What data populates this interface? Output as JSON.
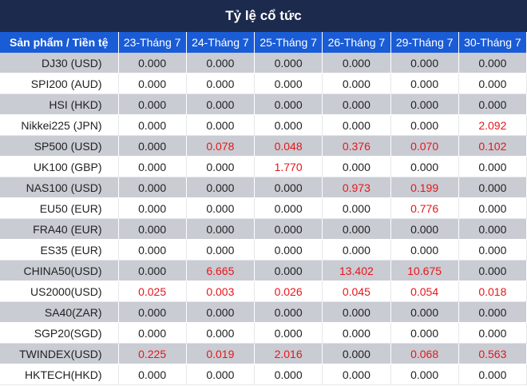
{
  "title": "Tỷ lệ cổ tức",
  "header": [
    "Sản phẩm / Tiền tệ",
    "23-Tháng 7",
    "24-Tháng 7",
    "25-Tháng 7",
    "26-Tháng 7",
    "29-Tháng 7",
    "30-Tháng 7"
  ],
  "colors": {
    "title_bg": "#1c2a4d",
    "header_bg": "#1a5cd6",
    "odd_row_bg": "#c9ccd3",
    "positive_text": "#e8151b"
  },
  "rows": [
    {
      "product": "DJ30 (USD)",
      "values": [
        "0.000",
        "0.000",
        "0.000",
        "0.000",
        "0.000",
        "0.000"
      ]
    },
    {
      "product": "SPI200 (AUD)",
      "values": [
        "0.000",
        "0.000",
        "0.000",
        "0.000",
        "0.000",
        "0.000"
      ]
    },
    {
      "product": "HSI (HKD)",
      "values": [
        "0.000",
        "0.000",
        "0.000",
        "0.000",
        "0.000",
        "0.000"
      ]
    },
    {
      "product": "Nikkei225 (JPN)",
      "values": [
        "0.000",
        "0.000",
        "0.000",
        "0.000",
        "0.000",
        "2.092"
      ]
    },
    {
      "product": "SP500 (USD)",
      "values": [
        "0.000",
        "0.078",
        "0.048",
        "0.376",
        "0.070",
        "0.102"
      ]
    },
    {
      "product": "UK100 (GBP)",
      "values": [
        "0.000",
        "0.000",
        "1.770",
        "0.000",
        "0.000",
        "0.000"
      ]
    },
    {
      "product": "NAS100 (USD)",
      "values": [
        "0.000",
        "0.000",
        "0.000",
        "0.973",
        "0.199",
        "0.000"
      ]
    },
    {
      "product": "EU50 (EUR)",
      "values": [
        "0.000",
        "0.000",
        "0.000",
        "0.000",
        "0.776",
        "0.000"
      ]
    },
    {
      "product": "FRA40 (EUR)",
      "values": [
        "0.000",
        "0.000",
        "0.000",
        "0.000",
        "0.000",
        "0.000"
      ]
    },
    {
      "product": "ES35 (EUR)",
      "values": [
        "0.000",
        "0.000",
        "0.000",
        "0.000",
        "0.000",
        "0.000"
      ]
    },
    {
      "product": "CHINA50(USD)",
      "values": [
        "0.000",
        "6.665",
        "0.000",
        "13.402",
        "10.675",
        "0.000"
      ]
    },
    {
      "product": "US2000(USD)",
      "values": [
        "0.025",
        "0.003",
        "0.026",
        "0.045",
        "0.054",
        "0.018"
      ]
    },
    {
      "product": "SA40(ZAR)",
      "values": [
        "0.000",
        "0.000",
        "0.000",
        "0.000",
        "0.000",
        "0.000"
      ]
    },
    {
      "product": "SGP20(SGD)",
      "values": [
        "0.000",
        "0.000",
        "0.000",
        "0.000",
        "0.000",
        "0.000"
      ]
    },
    {
      "product": "TWINDEX(USD)",
      "values": [
        "0.225",
        "0.019",
        "2.016",
        "0.000",
        "0.068",
        "0.563"
      ]
    },
    {
      "product": "HKTECH(HKD)",
      "values": [
        "0.000",
        "0.000",
        "0.000",
        "0.000",
        "0.000",
        "0.000"
      ]
    }
  ]
}
